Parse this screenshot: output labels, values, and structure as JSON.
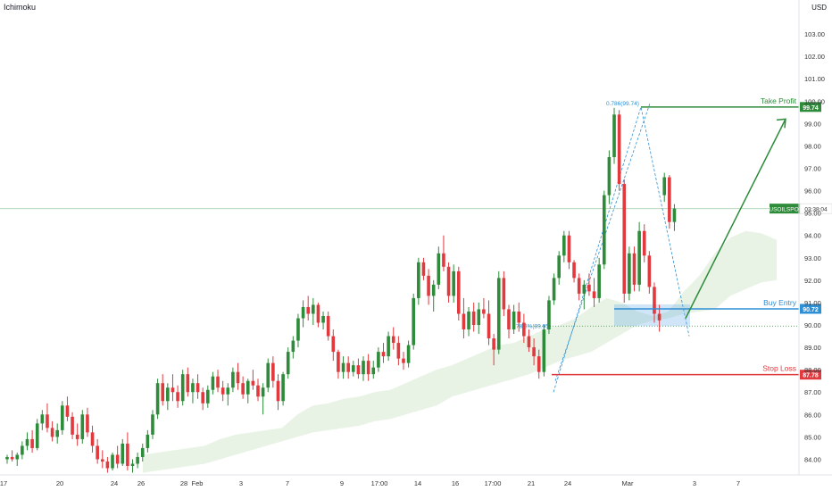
{
  "indicator": "Ichimoku",
  "currency": "USD",
  "colors": {
    "up": "#26a17b",
    "up_candle": "#2e8b3a",
    "down": "#e0393e",
    "green_line": "#2e8b3a",
    "red_line": "#e0393e",
    "blue": "#2d8fd5",
    "cloud": "#e8f3e6",
    "grid_text": "#333333"
  },
  "chart_data": {
    "type": "candlestick",
    "symbol": "USOILSPOT",
    "ylim": [
      83.3,
      104.2
    ],
    "y_ticks": [
      "103.00",
      "102.00",
      "101.00",
      "100.00",
      "99.00",
      "98.00",
      "97.00",
      "96.00",
      "95.00",
      "94.00",
      "93.00",
      "92.00",
      "91.00",
      "90.00",
      "89.00",
      "88.00",
      "87.00",
      "86.00",
      "85.00",
      "84.00"
    ],
    "x_ticks": [
      "17",
      "20",
      "24",
      "26",
      "28",
      "Feb",
      "3",
      "7",
      "9",
      "17:00",
      "14",
      "16",
      "17:00",
      "21",
      "24",
      "Mar",
      "3",
      "7"
    ],
    "price_label": {
      "symbol": "USOILSPOT",
      "time": "03:38:04",
      "value": 95.2
    },
    "levels": [
      {
        "name": "take-profit",
        "label": "Take Profit",
        "value": 99.74,
        "value_text": "99.74"
      },
      {
        "name": "buy-entry",
        "label": "Buy Entry",
        "value": 90.72,
        "value_text": "90.72"
      },
      {
        "name": "stop-loss",
        "label": "Stop Loss",
        "value": 87.78,
        "value_text": "87.78"
      }
    ],
    "fib_labels": [
      {
        "text": "0.786(99.74)",
        "value": 99.74
      },
      {
        "text": "78.6%(89.95)",
        "value": 89.95
      }
    ],
    "candles": [
      [
        84.0,
        84.2,
        83.8,
        84.1
      ],
      [
        84.1,
        84.4,
        83.9,
        84.0
      ],
      [
        84.0,
        84.3,
        83.7,
        84.2
      ],
      [
        84.2,
        84.8,
        84.0,
        84.6
      ],
      [
        84.6,
        85.2,
        84.4,
        84.9
      ],
      [
        84.9,
        85.3,
        84.3,
        84.5
      ],
      [
        84.5,
        85.8,
        84.4,
        85.6
      ],
      [
        85.6,
        86.2,
        85.3,
        86.0
      ],
      [
        86.0,
        86.5,
        85.2,
        85.4
      ],
      [
        85.4,
        85.7,
        84.8,
        85.0
      ],
      [
        85.0,
        85.6,
        84.7,
        85.3
      ],
      [
        85.3,
        86.6,
        85.1,
        86.4
      ],
      [
        86.4,
        86.8,
        85.7,
        85.9
      ],
      [
        85.9,
        86.1,
        84.9,
        85.1
      ],
      [
        85.1,
        85.6,
        84.6,
        84.9
      ],
      [
        84.9,
        86.2,
        84.7,
        86.0
      ],
      [
        86.0,
        86.3,
        85.0,
        85.2
      ],
      [
        85.2,
        85.5,
        84.3,
        84.6
      ],
      [
        84.6,
        84.9,
        83.8,
        84.0
      ],
      [
        84.0,
        84.4,
        83.6,
        83.9
      ],
      [
        83.9,
        84.1,
        83.4,
        83.6
      ],
      [
        83.6,
        84.3,
        83.5,
        84.2
      ],
      [
        84.2,
        84.6,
        83.6,
        83.8
      ],
      [
        83.8,
        84.9,
        83.7,
        84.7
      ],
      [
        84.7,
        85.2,
        83.5,
        83.7
      ],
      [
        83.7,
        84.0,
        83.4,
        83.8
      ],
      [
        83.8,
        84.3,
        83.6,
        84.1
      ],
      [
        84.1,
        84.7,
        83.9,
        84.5
      ],
      [
        84.5,
        85.3,
        84.3,
        85.1
      ],
      [
        85.1,
        86.2,
        84.9,
        86.0
      ],
      [
        86.0,
        87.6,
        85.8,
        87.4
      ],
      [
        87.4,
        87.8,
        86.4,
        86.6
      ],
      [
        86.6,
        87.4,
        86.2,
        87.2
      ],
      [
        87.2,
        87.8,
        86.6,
        87.0
      ],
      [
        87.0,
        87.3,
        86.3,
        86.6
      ],
      [
        86.6,
        88.0,
        86.4,
        87.8
      ],
      [
        87.8,
        88.1,
        86.8,
        87.0
      ],
      [
        87.0,
        87.6,
        86.5,
        87.4
      ],
      [
        87.4,
        87.8,
        86.7,
        87.0
      ],
      [
        87.0,
        87.2,
        86.2,
        86.5
      ],
      [
        86.5,
        87.3,
        86.3,
        87.1
      ],
      [
        87.1,
        87.9,
        86.9,
        87.7
      ],
      [
        87.7,
        88.0,
        87.0,
        87.2
      ],
      [
        87.2,
        87.5,
        86.6,
        86.9
      ],
      [
        86.9,
        87.4,
        86.4,
        87.2
      ],
      [
        87.2,
        88.1,
        87.0,
        87.9
      ],
      [
        87.9,
        88.3,
        87.1,
        87.4
      ],
      [
        87.4,
        87.7,
        86.7,
        86.9
      ],
      [
        86.9,
        87.6,
        86.5,
        87.5
      ],
      [
        87.5,
        88.0,
        87.1,
        87.3
      ],
      [
        87.3,
        87.6,
        86.6,
        86.8
      ],
      [
        86.8,
        87.4,
        86.0,
        87.2
      ],
      [
        87.2,
        88.5,
        87.0,
        88.3
      ],
      [
        88.3,
        88.6,
        87.2,
        87.5
      ],
      [
        87.5,
        87.8,
        86.2,
        86.6
      ],
      [
        86.6,
        87.9,
        86.4,
        87.8
      ],
      [
        87.8,
        89.0,
        87.6,
        88.8
      ],
      [
        88.8,
        89.5,
        88.5,
        89.3
      ],
      [
        89.3,
        90.5,
        89.0,
        90.3
      ],
      [
        90.3,
        91.1,
        89.9,
        90.8
      ],
      [
        90.8,
        91.3,
        90.2,
        90.5
      ],
      [
        90.5,
        91.2,
        90.0,
        90.9
      ],
      [
        90.9,
        91.0,
        89.9,
        90.1
      ],
      [
        90.1,
        90.6,
        89.8,
        90.4
      ],
      [
        90.4,
        90.6,
        89.3,
        89.5
      ],
      [
        89.5,
        89.8,
        88.4,
        88.8
      ],
      [
        88.8,
        88.9,
        87.6,
        87.9
      ],
      [
        87.9,
        88.6,
        87.6,
        88.3
      ],
      [
        88.3,
        88.6,
        87.6,
        87.9
      ],
      [
        87.9,
        88.4,
        87.7,
        88.2
      ],
      [
        88.2,
        88.5,
        87.6,
        87.8
      ],
      [
        87.8,
        88.6,
        87.5,
        88.4
      ],
      [
        88.4,
        88.7,
        87.5,
        87.8
      ],
      [
        87.8,
        88.4,
        87.6,
        88.1
      ],
      [
        88.1,
        89.0,
        87.9,
        88.8
      ],
      [
        88.8,
        89.2,
        88.3,
        88.6
      ],
      [
        88.6,
        89.7,
        88.4,
        89.5
      ],
      [
        89.5,
        89.9,
        88.9,
        89.2
      ],
      [
        89.2,
        89.5,
        88.2,
        88.5
      ],
      [
        88.5,
        88.8,
        88.0,
        88.3
      ],
      [
        88.3,
        89.3,
        88.1,
        89.1
      ],
      [
        89.1,
        91.4,
        88.9,
        91.2
      ],
      [
        91.2,
        93.0,
        90.9,
        92.8
      ],
      [
        92.8,
        93.0,
        92.0,
        92.2
      ],
      [
        92.2,
        92.5,
        90.9,
        91.3
      ],
      [
        91.3,
        92.0,
        90.6,
        91.8
      ],
      [
        91.8,
        93.5,
        91.6,
        93.2
      ],
      [
        93.2,
        94.0,
        92.4,
        92.6
      ],
      [
        92.6,
        92.8,
        91.0,
        91.3
      ],
      [
        91.3,
        92.7,
        91.0,
        92.4
      ],
      [
        92.4,
        92.6,
        90.2,
        90.5
      ],
      [
        90.5,
        91.2,
        89.4,
        89.8
      ],
      [
        89.8,
        90.8,
        89.5,
        90.6
      ],
      [
        90.6,
        91.0,
        89.7,
        90.0
      ],
      [
        90.0,
        91.0,
        89.6,
        90.7
      ],
      [
        90.7,
        91.2,
        90.3,
        90.5
      ],
      [
        90.5,
        91.1,
        89.1,
        89.4
      ],
      [
        89.4,
        89.6,
        88.2,
        88.9
      ],
      [
        88.9,
        92.4,
        88.7,
        92.1
      ],
      [
        92.1,
        92.4,
        90.4,
        90.7
      ],
      [
        90.7,
        90.9,
        89.4,
        89.8
      ],
      [
        89.8,
        90.9,
        89.6,
        90.6
      ],
      [
        90.6,
        91.0,
        89.7,
        90.1
      ],
      [
        90.1,
        90.5,
        89.2,
        89.5
      ],
      [
        89.5,
        89.8,
        88.8,
        89.0
      ],
      [
        89.0,
        89.4,
        88.2,
        88.6
      ],
      [
        88.6,
        88.9,
        87.6,
        87.9
      ],
      [
        87.9,
        90.0,
        87.7,
        89.8
      ],
      [
        89.8,
        91.3,
        89.6,
        91.1
      ],
      [
        91.1,
        92.3,
        90.9,
        92.1
      ],
      [
        92.1,
        93.3,
        91.8,
        93.1
      ],
      [
        93.1,
        94.2,
        92.8,
        94.0
      ],
      [
        94.0,
        94.2,
        92.5,
        92.8
      ],
      [
        92.8,
        92.9,
        91.9,
        92.1
      ],
      [
        92.1,
        92.3,
        91.1,
        91.4
      ],
      [
        91.4,
        92.0,
        90.7,
        91.8
      ],
      [
        91.8,
        92.3,
        91.3,
        91.5
      ],
      [
        91.5,
        92.1,
        90.8,
        91.2
      ],
      [
        91.2,
        93.0,
        91.0,
        92.7
      ],
      [
        92.7,
        96.0,
        92.5,
        95.8
      ],
      [
        95.8,
        97.8,
        95.4,
        97.5
      ],
      [
        97.5,
        99.7,
        97.2,
        99.4
      ],
      [
        99.4,
        99.6,
        96.0,
        96.3
      ],
      [
        96.3,
        96.5,
        91.0,
        91.4
      ],
      [
        91.4,
        93.5,
        91.1,
        93.2
      ],
      [
        93.2,
        93.5,
        91.5,
        91.8
      ],
      [
        91.8,
        94.6,
        91.5,
        94.2
      ],
      [
        94.2,
        94.5,
        92.8,
        93.1
      ],
      [
        93.1,
        93.3,
        91.4,
        91.7
      ],
      [
        91.7,
        91.9,
        90.1,
        90.5
      ],
      [
        90.5,
        90.9,
        89.7,
        90.2
      ],
      [
        95.8,
        96.8,
        95.5,
        96.6
      ],
      [
        96.6,
        96.7,
        94.3,
        94.6
      ],
      [
        94.6,
        95.4,
        94.2,
        95.2
      ]
    ],
    "cloud": [
      [
        84.2,
        83.4
      ],
      [
        84.3,
        83.5
      ],
      [
        84.4,
        83.6
      ],
      [
        84.5,
        83.7
      ],
      [
        84.6,
        83.8
      ],
      [
        84.9,
        84.0
      ],
      [
        85.1,
        84.2
      ],
      [
        85.2,
        84.4
      ],
      [
        85.3,
        84.6
      ],
      [
        85.4,
        84.8
      ],
      [
        86.0,
        85.0
      ],
      [
        86.4,
        85.2
      ],
      [
        86.5,
        85.3
      ],
      [
        86.7,
        85.4
      ],
      [
        86.8,
        85.5
      ],
      [
        87.0,
        85.7
      ],
      [
        87.1,
        85.8
      ],
      [
        87.4,
        86.0
      ],
      [
        87.7,
        86.2
      ],
      [
        88.0,
        86.4
      ],
      [
        88.2,
        86.8
      ],
      [
        88.5,
        87.0
      ],
      [
        88.8,
        87.2
      ],
      [
        89.1,
        87.4
      ],
      [
        89.2,
        87.6
      ],
      [
        89.5,
        87.8
      ],
      [
        89.8,
        88.1
      ],
      [
        90.0,
        88.4
      ],
      [
        90.3,
        88.6
      ],
      [
        90.8,
        88.8
      ],
      [
        91.2,
        89.2
      ],
      [
        91.0,
        89.6
      ],
      [
        90.6,
        90.0
      ],
      [
        90.4,
        90.2
      ],
      [
        90.6,
        90.3
      ],
      [
        91.5,
        90.5
      ],
      [
        92.2,
        90.6
      ],
      [
        93.2,
        90.7
      ],
      [
        93.9,
        91.3
      ],
      [
        94.2,
        91.6
      ],
      [
        94.1,
        91.9
      ],
      [
        93.8,
        92.0
      ]
    ]
  }
}
